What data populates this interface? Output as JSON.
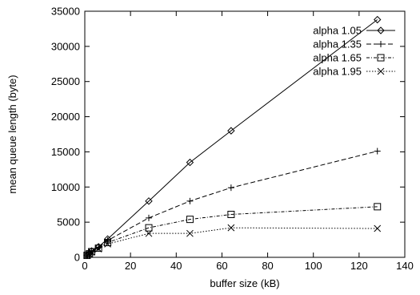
{
  "chart_data": {
    "type": "line",
    "title": "",
    "xlabel": "buffer size (kB)",
    "ylabel": "mean queue length (byte)",
    "xlim": [
      0,
      140
    ],
    "ylim": [
      0,
      35000
    ],
    "xticks": [
      0,
      20,
      40,
      60,
      80,
      100,
      120,
      140
    ],
    "yticks": [
      0,
      5000,
      10000,
      15000,
      20000,
      25000,
      30000,
      35000
    ],
    "grid": false,
    "legend_position": "top-right",
    "series": [
      {
        "name": "alpha 1.05",
        "marker": "diamond",
        "line_style": "solid",
        "x": [
          1,
          2,
          3,
          6,
          10,
          28,
          46,
          64,
          128
        ],
        "y": [
          300,
          600,
          900,
          1500,
          2600,
          8000,
          13500,
          18000,
          33800
        ]
      },
      {
        "name": "alpha 1.35",
        "marker": "plus",
        "line_style": "dashed",
        "x": [
          1,
          2,
          3,
          6,
          10,
          28,
          46,
          64,
          128
        ],
        "y": [
          300,
          550,
          850,
          1400,
          2400,
          5600,
          8000,
          9900,
          15100
        ]
      },
      {
        "name": "alpha 1.65",
        "marker": "square",
        "line_style": "dash-dot",
        "x": [
          1,
          2,
          3,
          6,
          10,
          28,
          46,
          64,
          128
        ],
        "y": [
          280,
          500,
          800,
          1300,
          2100,
          4200,
          5400,
          6100,
          7200
        ]
      },
      {
        "name": "alpha 1.95",
        "marker": "cross",
        "line_style": "dotted",
        "x": [
          1,
          2,
          3,
          6,
          10,
          28,
          46,
          64,
          128
        ],
        "y": [
          250,
          450,
          750,
          1200,
          1900,
          3400,
          3400,
          4200,
          4100
        ]
      }
    ]
  }
}
